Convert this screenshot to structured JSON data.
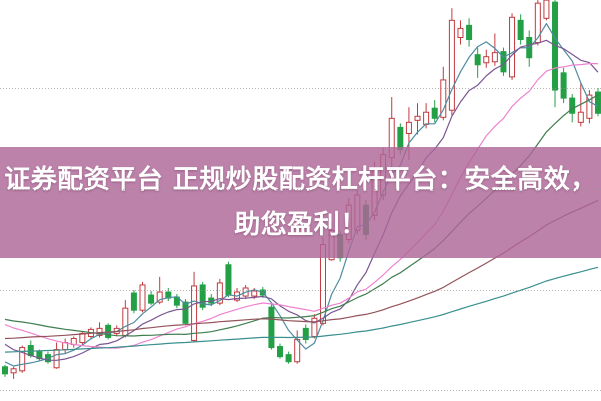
{
  "banner": {
    "line1": "证券配资平台 正规炒股配资杠杆平台：安全高效，",
    "line2": "助您盈利！",
    "bg_color": "#ad6697",
    "bg_opacity": 0.82,
    "text_color": "#ffffff"
  },
  "chart_data": {
    "type": "candlestick",
    "title": "",
    "xlabel": "",
    "ylabel": "",
    "x_count": 70,
    "ylim": [
      9.9,
      13.87
    ],
    "grid": "dotted-horizontal",
    "gridline_prices": [
      13.0,
      12.0,
      11.0,
      10.0
    ],
    "up_color": "#c23a3e",
    "down_color": "#23a046",
    "gridline_color": "#969696",
    "candles_ohlc": [
      [
        10.24,
        10.26,
        10.14,
        10.17
      ],
      [
        10.18,
        10.24,
        10.12,
        10.22
      ],
      [
        10.2,
        10.45,
        10.18,
        10.43
      ],
      [
        10.45,
        10.5,
        10.33,
        10.35
      ],
      [
        10.39,
        10.41,
        10.3,
        10.32
      ],
      [
        10.36,
        10.39,
        10.27,
        10.29
      ],
      [
        10.23,
        10.48,
        10.22,
        10.41
      ],
      [
        10.41,
        10.52,
        10.37,
        10.48
      ],
      [
        10.46,
        10.54,
        10.43,
        10.52
      ],
      [
        10.48,
        10.59,
        10.46,
        10.57
      ],
      [
        10.54,
        10.63,
        10.51,
        10.61
      ],
      [
        10.55,
        10.68,
        10.53,
        10.62
      ],
      [
        10.65,
        10.67,
        10.51,
        10.53
      ],
      [
        10.57,
        10.65,
        10.54,
        10.62
      ],
      [
        10.55,
        10.9,
        10.53,
        10.82
      ],
      [
        10.97,
        11.0,
        10.77,
        10.8
      ],
      [
        10.8,
        11.08,
        10.78,
        11.05
      ],
      [
        10.95,
        10.99,
        10.85,
        10.87
      ],
      [
        10.88,
        11.13,
        10.86,
        10.98
      ],
      [
        10.98,
        11.02,
        10.89,
        10.92
      ],
      [
        10.93,
        10.96,
        10.82,
        10.85
      ],
      [
        10.88,
        10.91,
        10.65,
        10.67
      ],
      [
        10.5,
        11.18,
        10.49,
        11.04
      ],
      [
        11.05,
        11.08,
        10.8,
        10.83
      ],
      [
        10.92,
        10.96,
        10.84,
        10.87
      ],
      [
        10.87,
        11.11,
        10.85,
        11.07
      ],
      [
        11.25,
        11.28,
        10.93,
        10.95
      ],
      [
        10.9,
        11.02,
        10.88,
        10.98
      ],
      [
        10.94,
        11.05,
        10.91,
        11.02
      ],
      [
        10.94,
        11.02,
        10.91,
        10.99
      ],
      [
        11.0,
        11.03,
        10.92,
        10.95
      ],
      [
        10.83,
        10.87,
        10.41,
        10.43
      ],
      [
        10.44,
        10.47,
        10.32,
        10.34
      ],
      [
        10.36,
        10.39,
        10.27,
        10.29
      ],
      [
        10.29,
        10.6,
        10.27,
        10.51
      ],
      [
        10.62,
        10.66,
        10.47,
        10.51
      ],
      [
        10.54,
        10.76,
        10.52,
        10.72
      ],
      [
        10.67,
        11.52,
        10.65,
        11.45
      ],
      [
        11.3,
        11.67,
        11.29,
        11.59
      ],
      [
        11.55,
        11.59,
        11.28,
        11.32
      ],
      [
        11.5,
        11.91,
        11.46,
        11.84
      ],
      [
        11.59,
        11.99,
        11.55,
        11.94
      ],
      [
        11.84,
        11.89,
        11.5,
        11.55
      ],
      [
        11.74,
        12.27,
        11.69,
        12.19
      ],
      [
        11.94,
        12.41,
        11.89,
        12.34
      ],
      [
        12.31,
        12.91,
        12.11,
        12.7
      ],
      [
        12.61,
        12.65,
        12.34,
        12.39
      ],
      [
        12.55,
        12.81,
        12.29,
        12.66
      ],
      [
        12.68,
        12.85,
        12.54,
        12.72
      ],
      [
        12.64,
        12.85,
        12.6,
        12.76
      ],
      [
        12.8,
        12.88,
        12.66,
        12.7
      ],
      [
        12.71,
        13.21,
        12.68,
        13.08
      ],
      [
        12.78,
        13.79,
        12.73,
        13.67
      ],
      [
        13.5,
        13.67,
        13.43,
        13.59
      ],
      [
        13.62,
        13.69,
        13.41,
        13.48
      ],
      [
        13.33,
        13.4,
        13.1,
        13.23
      ],
      [
        13.25,
        13.38,
        13.2,
        13.31
      ],
      [
        13.26,
        13.54,
        13.22,
        13.35
      ],
      [
        13.36,
        13.4,
        13.12,
        13.16
      ],
      [
        13.11,
        13.74,
        13.08,
        13.7
      ],
      [
        13.67,
        13.73,
        13.43,
        13.48
      ],
      [
        13.5,
        13.57,
        13.21,
        13.3
      ],
      [
        13.45,
        13.87,
        13.42,
        13.84
      ],
      [
        13.69,
        13.95,
        13.67,
        13.87
      ],
      [
        13.85,
        13.87,
        12.81,
        12.98
      ],
      [
        13.15,
        13.2,
        12.85,
        12.9
      ],
      [
        12.9,
        12.94,
        12.66,
        12.75
      ],
      [
        12.66,
        13.05,
        12.62,
        12.76
      ],
      [
        12.7,
        12.98,
        12.65,
        12.93
      ],
      [
        12.96,
        13.0,
        12.72,
        12.75
      ]
    ],
    "prehistory_closes": [
      9.9,
      9.92,
      9.95,
      9.93,
      9.98,
      10.0,
      9.97,
      10.02,
      10.05,
      10.03,
      10.08,
      10.06,
      10.1,
      10.12,
      10.1,
      10.15,
      10.13,
      10.17,
      10.2,
      10.18,
      10.22,
      10.2,
      10.25,
      10.23,
      10.27,
      10.3,
      10.28,
      10.32,
      10.3,
      10.35,
      10.33,
      10.37,
      10.35,
      10.4,
      10.38,
      10.36,
      10.4,
      10.42,
      10.4,
      10.44,
      10.42,
      10.46,
      10.44,
      10.48,
      10.46,
      10.5,
      10.48,
      10.46,
      10.44,
      10.42,
      10.4,
      10.38,
      10.35,
      10.32,
      10.3,
      10.28,
      10.25,
      10.22,
      10.2,
      10.1,
      10.0,
      10.02,
      10.05,
      10.03,
      10.08,
      10.1,
      10.12,
      10.15,
      10.13,
      10.18,
      10.2,
      10.22,
      10.25,
      10.28,
      10.26,
      10.3,
      10.33,
      10.35,
      10.38,
      10.4,
      10.42,
      10.45,
      10.48,
      10.5,
      10.52,
      10.55,
      10.58,
      10.6,
      10.62,
      10.65,
      10.68,
      10.7,
      10.73,
      10.75,
      10.78,
      10.8,
      10.83,
      10.85,
      10.87,
      10.9,
      10.92,
      10.9,
      10.88,
      10.9,
      10.87,
      10.85,
      10.88,
      10.85,
      10.82,
      10.8,
      10.78,
      10.75,
      10.7,
      10.65,
      10.58,
      10.5,
      10.42,
      10.35,
      10.28,
      10.22
    ],
    "ma_lines": [
      {
        "name": "MA5",
        "window": 5,
        "color": "#4d8ba0"
      },
      {
        "name": "MA10",
        "window": 10,
        "color": "#7a5693"
      },
      {
        "name": "MA20",
        "window": 20,
        "color": "#ee82d0"
      },
      {
        "name": "MA30",
        "window": 30,
        "color": "#3f7d4e"
      },
      {
        "name": "MA60",
        "window": 60,
        "color": "#94525a"
      },
      {
        "name": "MA120",
        "window": 120,
        "color": "#3a8f8f"
      }
    ]
  }
}
